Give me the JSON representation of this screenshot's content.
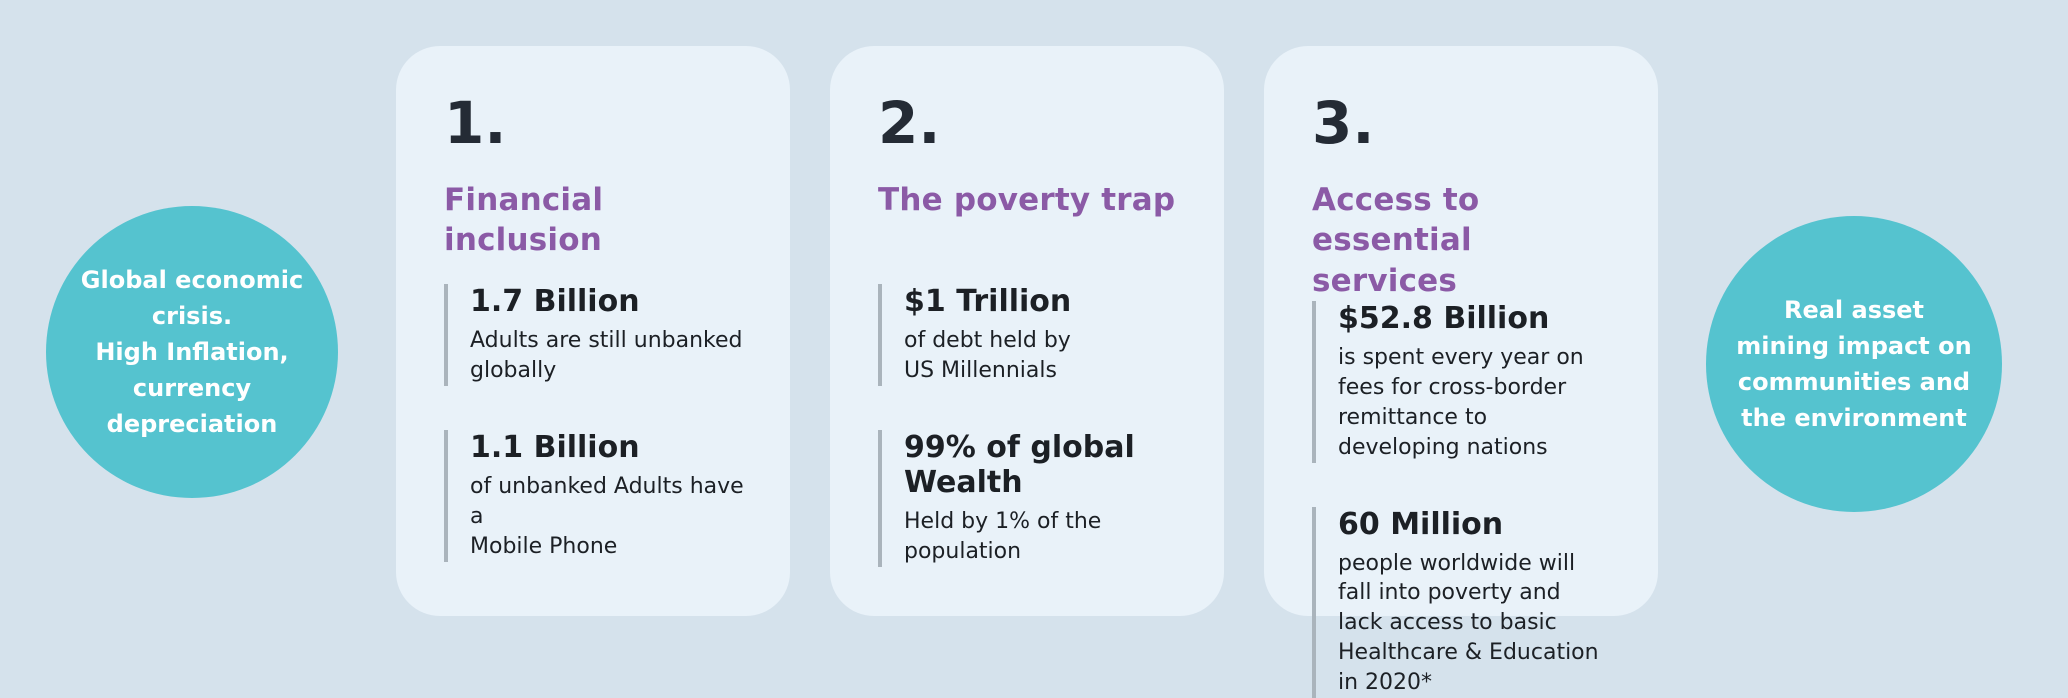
{
  "colors": {
    "page_bg": "#d5e2ec",
    "card_bg": "#e9f2f9",
    "bubble_bg": "#55c3cf",
    "accent_purple": "#8b5aa6",
    "dark_text": "#242b35",
    "stat_bar": "#aab4bc",
    "bubble_text": "#ffffff"
  },
  "left_bubble": {
    "text": "Global economic crisis.\nHigh Inflation, currency depreciation"
  },
  "right_bubble": {
    "text": "Real asset  mining impact on communities and the environment"
  },
  "cards": [
    {
      "number": "1.",
      "title": "Financial inclusion",
      "stats": [
        {
          "value": "1.7 Billion",
          "desc": "Adults are still unbanked\nglobally"
        },
        {
          "value": "1.1 Billion",
          "desc": "of unbanked Adults have a\nMobile Phone"
        }
      ]
    },
    {
      "number": "2.",
      "title": "The poverty trap",
      "stats": [
        {
          "value": "$1 Trillion",
          "desc": "of debt held by\nUS Millennials"
        },
        {
          "value": "99% of global Wealth",
          "desc": "Held by 1% of the\npopulation"
        }
      ]
    },
    {
      "number": "3.",
      "title": "Access to essential services",
      "stats": [
        {
          "value": "$52.8 Billion",
          "desc": "is spent every year on fees for cross-border remittance to developing nations"
        },
        {
          "value": "60 Million",
          "desc": "people worldwide will fall into poverty and lack access to basic Healthcare & Education in 2020*"
        }
      ]
    }
  ]
}
